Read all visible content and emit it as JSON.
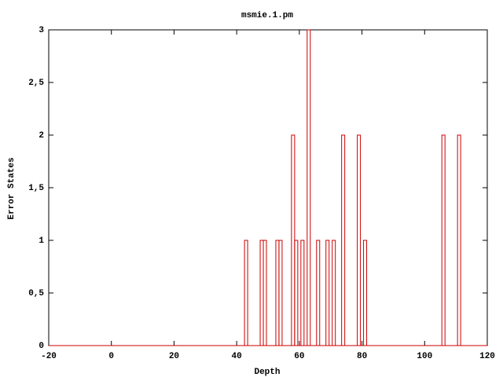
{
  "chart_data": {
    "type": "histeps",
    "title": "msmie.1.pm",
    "x_label": "Depth",
    "y_label": "Error States",
    "x": [
      43,
      48,
      49,
      53,
      54,
      58,
      59,
      61,
      63,
      66,
      69,
      71,
      74,
      79,
      81,
      106,
      111
    ],
    "values": [
      1,
      1,
      1,
      1,
      1,
      2,
      1,
      1,
      3,
      1,
      1,
      1,
      2,
      2,
      1,
      2,
      2
    ],
    "color": "#cc0000",
    "xlim": [
      -20,
      120
    ],
    "xticks": [
      -20,
      0,
      20,
      40,
      60,
      80,
      100,
      120
    ],
    "ylim": [
      0,
      3
    ],
    "yticks": [
      0,
      {
        "value": 0.5,
        "label": "0,5"
      },
      1,
      {
        "value": 1.5,
        "label": "1,5"
      },
      2,
      {
        "value": 2.5,
        "label": "2,5"
      },
      3
    ],
    "grid": false
  }
}
